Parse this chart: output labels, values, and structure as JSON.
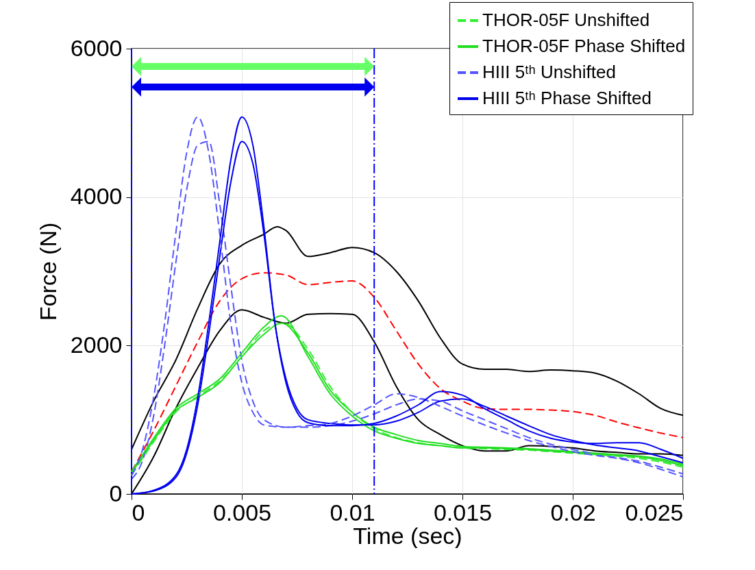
{
  "chart_data": {
    "type": "line",
    "xlabel": "Time (sec)",
    "ylabel": "Force (N)",
    "xlim": [
      0,
      0.025
    ],
    "ylim": [
      0,
      6000
    ],
    "xticks": [
      0,
      0.005,
      0.01,
      0.015,
      0.02,
      0.025
    ],
    "yticks": [
      0,
      2000,
      4000,
      6000
    ],
    "grid": true,
    "legend": "top right",
    "marker": "none",
    "series": [
      {
        "color": "#000000",
        "line_style": "solid",
        "x": [
          0,
          0.001,
          0.002,
          0.003,
          0.004,
          0.005,
          0.006,
          0.0066,
          0.007,
          0.008,
          0.009,
          0.01,
          0.011,
          0.012,
          0.013,
          0.014,
          0.015,
          0.016,
          0.017,
          0.018,
          0.019,
          0.02,
          0.021,
          0.022,
          0.023,
          0.024,
          0.025
        ],
        "values": [
          600,
          1250,
          1800,
          2500,
          3100,
          3350,
          3500,
          3600,
          3550,
          3200,
          3250,
          3320,
          3250,
          3000,
          2600,
          2100,
          1750,
          1680,
          1680,
          1650,
          1670,
          1660,
          1630,
          1520,
          1350,
          1150,
          1060
        ]
      },
      {
        "color": "#000000",
        "line_style": "solid",
        "x": [
          0,
          0.001,
          0.002,
          0.003,
          0.004,
          0.005,
          0.006,
          0.007,
          0.008,
          0.009,
          0.01,
          0.011,
          0.012,
          0.013,
          0.014,
          0.015,
          0.016,
          0.017,
          0.018,
          0.019,
          0.02,
          0.021,
          0.022,
          0.023,
          0.024,
          0.025
        ],
        "values": [
          0,
          500,
          1150,
          1700,
          2200,
          2480,
          2380,
          2300,
          2420,
          2430,
          2420,
          2050,
          1450,
          1000,
          800,
          650,
          580,
          580,
          650,
          640,
          620,
          580,
          560,
          540,
          540,
          520
        ]
      },
      {
        "color": "#ff0000",
        "line_style": "dashed",
        "x": [
          0,
          0.001,
          0.002,
          0.003,
          0.004,
          0.005,
          0.006,
          0.007,
          0.008,
          0.009,
          0.01,
          0.011,
          0.012,
          0.013,
          0.014,
          0.015,
          0.016,
          0.017,
          0.018,
          0.019,
          0.02,
          0.021,
          0.022,
          0.023,
          0.024,
          0.025
        ],
        "values": [
          300,
          850,
          1450,
          2050,
          2600,
          2900,
          2980,
          2950,
          2820,
          2850,
          2870,
          2650,
          2200,
          1750,
          1420,
          1250,
          1150,
          1140,
          1140,
          1130,
          1110,
          1060,
          970,
          890,
          820,
          760
        ]
      },
      {
        "name": "THOR-05F Unshifted",
        "color": "#33ee33",
        "line_style": "dashed",
        "x": [
          0,
          0.001,
          0.002,
          0.003,
          0.004,
          0.005,
          0.006,
          0.0069,
          0.008,
          0.009,
          0.01,
          0.011,
          0.012,
          0.013,
          0.014,
          0.015,
          0.016,
          0.017,
          0.018,
          0.019,
          0.02,
          0.021,
          0.022,
          0.023,
          0.024,
          0.025
        ],
        "values": [
          250,
          700,
          1100,
          1320,
          1520,
          1850,
          2200,
          2300,
          1950,
          1450,
          1100,
          880,
          760,
          690,
          650,
          620,
          610,
          600,
          590,
          570,
          550,
          530,
          510,
          480,
          430,
          360
        ]
      },
      {
        "name": "THOR-05F Phase Shifted",
        "color": "#22dd22",
        "line_style": "solid",
        "x": [
          0,
          0.001,
          0.002,
          0.003,
          0.004,
          0.005,
          0.006,
          0.0068,
          0.008,
          0.009,
          0.01,
          0.011,
          0.012,
          0.013,
          0.014,
          0.015,
          0.016,
          0.017,
          0.018,
          0.019,
          0.02,
          0.021,
          0.022,
          0.023,
          0.024,
          0.025
        ],
        "values": [
          300,
          750,
          1150,
          1350,
          1550,
          1900,
          2250,
          2400,
          1850,
          1350,
          1050,
          850,
          750,
          680,
          650,
          620,
          620,
          610,
          600,
          580,
          560,
          540,
          520,
          500,
          450,
          380
        ]
      },
      {
        "color": "#22dd22",
        "line_style": "solid",
        "x": [
          0,
          0.001,
          0.002,
          0.003,
          0.004,
          0.005,
          0.006,
          0.0068,
          0.008,
          0.009,
          0.01,
          0.011,
          0.012,
          0.013,
          0.014,
          0.015,
          0.016,
          0.017,
          0.018,
          0.019,
          0.02,
          0.021,
          0.022,
          0.023,
          0.024,
          0.025
        ],
        "values": [
          280,
          720,
          1120,
          1300,
          1500,
          1850,
          2150,
          2300,
          1900,
          1400,
          1100,
          900,
          800,
          720,
          680,
          640,
          630,
          620,
          610,
          590,
          570,
          550,
          530,
          510,
          470,
          400
        ]
      },
      {
        "name": "HIII 5ᵗʰ Unshifted",
        "color": "#5555ff",
        "line_style": "dashed",
        "x": [
          0,
          0.0005,
          0.001,
          0.0015,
          0.002,
          0.0025,
          0.003,
          0.0035,
          0.004,
          0.0045,
          0.005,
          0.0055,
          0.006,
          0.007,
          0.008,
          0.009,
          0.01,
          0.011,
          0.012,
          0.013,
          0.014,
          0.015,
          0.016,
          0.017,
          0.018,
          0.019,
          0.02,
          0.021,
          0.022,
          0.023,
          0.024,
          0.025
        ],
        "values": [
          250,
          600,
          1300,
          2300,
          3500,
          4600,
          5080,
          4600,
          3500,
          2300,
          1500,
          1100,
          930,
          900,
          920,
          950,
          1050,
          1200,
          1350,
          1300,
          1180,
          1050,
          930,
          820,
          720,
          640,
          570,
          520,
          480,
          420,
          330,
          230
        ]
      },
      {
        "color": "#5555ff",
        "line_style": "dashed",
        "x": [
          0,
          0.0005,
          0.001,
          0.0015,
          0.002,
          0.0025,
          0.003,
          0.0035,
          0.004,
          0.0045,
          0.005,
          0.0055,
          0.006,
          0.007,
          0.008,
          0.009,
          0.01,
          0.011,
          0.012,
          0.013,
          0.014,
          0.015,
          0.016,
          0.017,
          0.018,
          0.019,
          0.02,
          0.021,
          0.022,
          0.023,
          0.024,
          0.025
        ],
        "values": [
          200,
          450,
          1050,
          2000,
          3100,
          4100,
          4700,
          4750,
          3900,
          2800,
          1800,
          1250,
          1000,
          900,
          900,
          920,
          980,
          1080,
          1200,
          1280,
          1250,
          1120,
          1000,
          880,
          760,
          670,
          600,
          540,
          490,
          440,
          360,
          270
        ]
      },
      {
        "name": "HIII 5ᵗʰ Phase Shifted",
        "color": "#0000ee",
        "line_style": "solid",
        "x": [
          0,
          0.001,
          0.002,
          0.0025,
          0.003,
          0.0035,
          0.004,
          0.0045,
          0.005,
          0.0055,
          0.006,
          0.0065,
          0.007,
          0.0075,
          0.008,
          0.009,
          0.01,
          0.011,
          0.012,
          0.013,
          0.014,
          0.015,
          0.016,
          0.017,
          0.018,
          0.019,
          0.02,
          0.021,
          0.022,
          0.023,
          0.024,
          0.025
        ],
        "values": [
          0,
          50,
          250,
          600,
          1300,
          2300,
          3400,
          4500,
          5080,
          4700,
          3600,
          2300,
          1500,
          1100,
          960,
          920,
          920,
          950,
          1050,
          1200,
          1380,
          1330,
          1150,
          1000,
          850,
          750,
          700,
          680,
          690,
          690,
          600,
          480
        ]
      },
      {
        "color": "#0000ee",
        "line_style": "solid",
        "x": [
          0,
          0.001,
          0.002,
          0.0025,
          0.003,
          0.0035,
          0.004,
          0.0045,
          0.005,
          0.0055,
          0.006,
          0.0065,
          0.007,
          0.0075,
          0.008,
          0.009,
          0.01,
          0.011,
          0.012,
          0.013,
          0.014,
          0.015,
          0.016,
          0.017,
          0.018,
          0.019,
          0.02,
          0.021,
          0.022,
          0.023,
          0.024,
          0.025
        ],
        "values": [
          0,
          40,
          220,
          550,
          1200,
          2150,
          3200,
          4200,
          4750,
          4450,
          3500,
          2300,
          1550,
          1150,
          1000,
          950,
          930,
          930,
          980,
          1100,
          1250,
          1280,
          1180,
          1050,
          920,
          800,
          720,
          660,
          620,
          580,
          500,
          420
        ]
      }
    ],
    "ref_lines": [
      {
        "axis": "x",
        "value": 0,
        "color": "#0000ff",
        "line_style": "dashed"
      },
      {
        "axis": "x",
        "value": 0.011,
        "color": "#0000ff",
        "line_style": "dashed"
      }
    ]
  }
}
